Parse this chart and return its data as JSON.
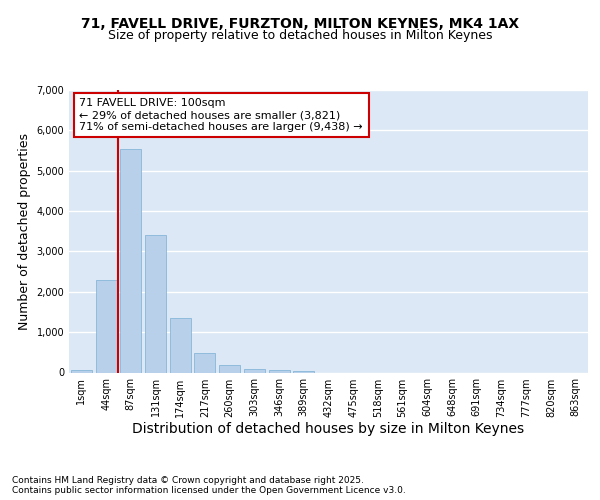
{
  "title_line1": "71, FAVELL DRIVE, FURZTON, MILTON KEYNES, MK4 1AX",
  "title_line2": "Size of property relative to detached houses in Milton Keynes",
  "xlabel": "Distribution of detached houses by size in Milton Keynes",
  "ylabel": "Number of detached properties",
  "categories": [
    "1sqm",
    "44sqm",
    "87sqm",
    "131sqm",
    "174sqm",
    "217sqm",
    "260sqm",
    "303sqm",
    "346sqm",
    "389sqm",
    "432sqm",
    "475sqm",
    "518sqm",
    "561sqm",
    "604sqm",
    "648sqm",
    "691sqm",
    "734sqm",
    "777sqm",
    "820sqm",
    "863sqm"
  ],
  "bar_values": [
    70,
    2300,
    5550,
    3400,
    1350,
    480,
    180,
    90,
    60,
    30,
    0,
    0,
    0,
    0,
    0,
    0,
    0,
    0,
    0,
    0,
    0
  ],
  "bar_color": "#b8d0ea",
  "bar_edge_color": "#7aafd4",
  "background_color": "#dce8f5",
  "grid_color": "#ffffff",
  "vline_x": 2,
  "vline_color": "#cc0000",
  "annotation_text": "71 FAVELL DRIVE: 100sqm\n← 29% of detached houses are smaller (3,821)\n71% of semi-detached houses are larger (9,438) →",
  "annotation_box_color": "#ffffff",
  "annotation_box_edge": "#cc0000",
  "ylim": [
    0,
    7000
  ],
  "yticks": [
    0,
    1000,
    2000,
    3000,
    4000,
    5000,
    6000,
    7000
  ],
  "footer_line1": "Contains HM Land Registry data © Crown copyright and database right 2025.",
  "footer_line2": "Contains public sector information licensed under the Open Government Licence v3.0.",
  "title_fontsize": 10,
  "subtitle_fontsize": 9,
  "axis_label_fontsize": 9,
  "tick_fontsize": 7,
  "annotation_fontsize": 8,
  "footer_fontsize": 6.5
}
